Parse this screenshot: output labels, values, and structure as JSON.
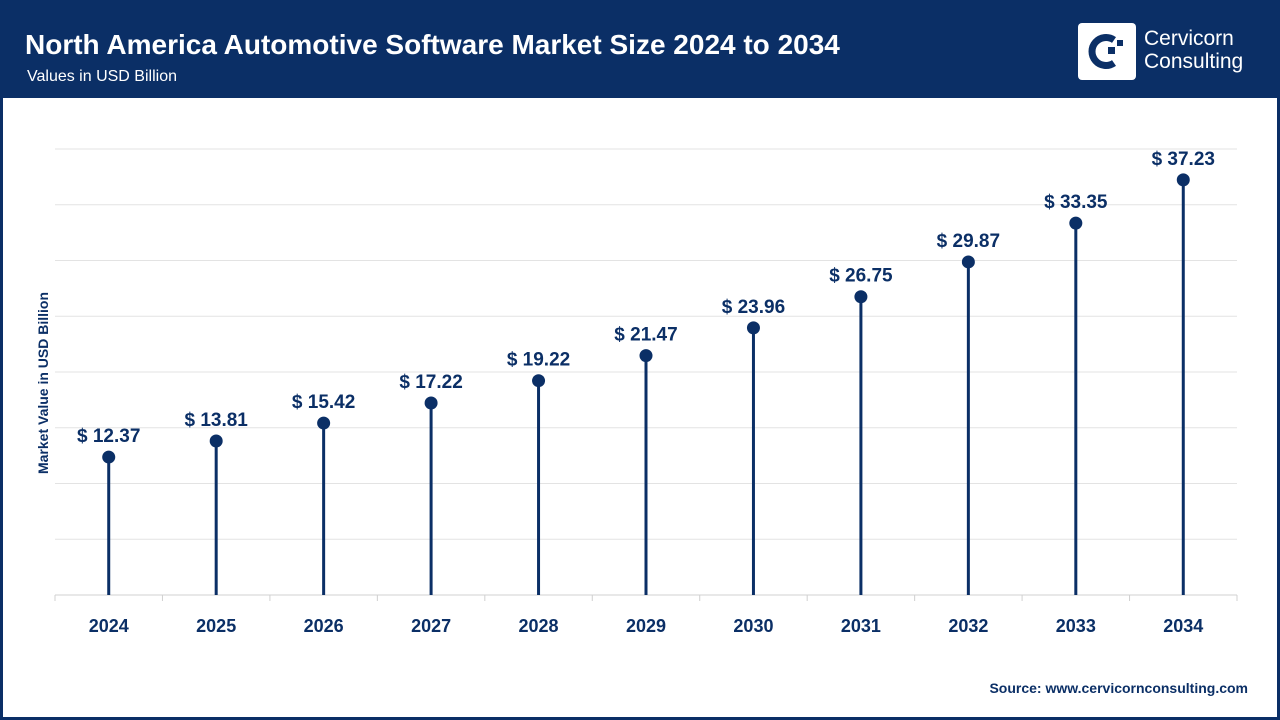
{
  "header": {
    "title": "North America Automotive Software Market Size 2024 to 2034",
    "subtitle": "Values in USD Billion",
    "logo_text": [
      "Cervicorn",
      "Consulting"
    ]
  },
  "source": "Source: www.cervicornconsulting.com",
  "colors": {
    "primary": "#0b2f66",
    "grid": "#e3e3e3"
  },
  "chart_data": {
    "type": "lollipop",
    "ylabel": "Market Value in USD Billion",
    "xlabel": "",
    "categories": [
      "2024",
      "2025",
      "2026",
      "2027",
      "2028",
      "2029",
      "2030",
      "2031",
      "2032",
      "2033",
      "2034"
    ],
    "values": [
      12.37,
      13.81,
      15.42,
      17.22,
      19.22,
      21.47,
      23.96,
      26.75,
      29.87,
      33.35,
      37.23
    ],
    "data_labels": [
      "$ 12.37",
      "$ 13.81",
      "$ 15.42",
      "$ 17.22",
      "$ 19.22",
      "$ 21.47",
      "$ 23.96",
      "$ 26.75",
      "$ 29.87",
      "$ 33.35",
      "$ 37.23"
    ],
    "ylim": [
      0,
      40
    ],
    "ytick_step": 5,
    "ytick_labels_shown": false,
    "grid": true,
    "legend": "none"
  }
}
